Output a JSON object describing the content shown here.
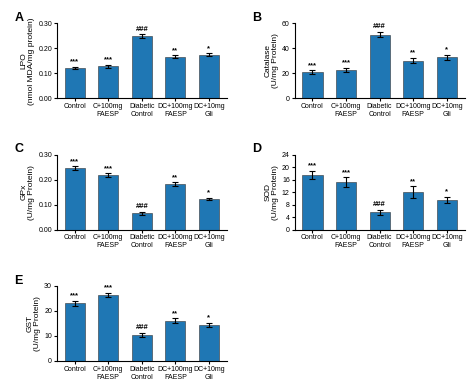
{
  "chart_data": [
    {
      "type": "bar",
      "title": "A",
      "y_label": "LPO\n(nmol MDA/mg protein)",
      "categories": [
        "Control",
        "C+100mg\nFAESP",
        "Diabetic\nControl",
        "DC+100mg\nFAESP",
        "DC+10mg\nGli"
      ],
      "values": [
        0.122,
        0.128,
        0.248,
        0.167,
        0.175
      ],
      "errors": [
        0.005,
        0.005,
        0.008,
        0.006,
        0.006
      ],
      "ylim": [
        0,
        0.3
      ],
      "yticks": [
        {
          "value": 0.0,
          "label": "0.00"
        },
        {
          "value": 0.1,
          "label": "0.10"
        },
        {
          "value": 0.2,
          "label": "0.20"
        },
        {
          "value": 0.3,
          "label": "0.30"
        }
      ],
      "annotations": [
        {
          "text": "***",
          "x": "Control",
          "y": 0.133
        },
        {
          "text": "***",
          "x": "C+100mg\nFAESP",
          "y": 0.139
        },
        {
          "text": "###",
          "x": "Diabetic\nControl",
          "y": 0.26
        },
        {
          "text": "**",
          "x": "DC+100mg\nFAESP",
          "y": 0.178
        },
        {
          "text": "*",
          "x": "DC+10mg\nGli",
          "y": 0.185
        }
      ]
    },
    {
      "type": "bar",
      "title": "B",
      "y_label": "Catalase\n(U/mg Protein)",
      "categories": [
        "Control",
        "C+100mg\nFAESP",
        "Diabetic\nControl",
        "DC+100mg\nFAESP",
        "DC+10mg\nGli"
      ],
      "values": [
        21.0,
        23.0,
        51.0,
        30.0,
        33.0
      ],
      "errors": [
        1.5,
        1.5,
        2.0,
        2.0,
        2.0
      ],
      "ylim": [
        0,
        60
      ],
      "yticks": [
        0,
        20,
        40,
        60
      ],
      "annotations": [
        {
          "text": "***",
          "x": "Control",
          "y": 23.5
        },
        {
          "text": "***",
          "x": "C+100mg\nFAESP",
          "y": 25.5
        },
        {
          "text": "###",
          "x": "Diabetic\nControl",
          "y": 54.5
        },
        {
          "text": "**",
          "x": "DC+100mg\nFAESP",
          "y": 33.5
        },
        {
          "text": "*",
          "x": "DC+10mg\nGli",
          "y": 36.5
        }
      ]
    },
    {
      "type": "bar",
      "title": "C",
      "y_label": "GPx\n(U/mg Protein)",
      "categories": [
        "Control",
        "C+100mg\nFAESP",
        "Diabetic\nControl",
        "DC+100mg\nFAESP",
        "DC+10mg\nGli"
      ],
      "values": [
        0.245,
        0.218,
        0.065,
        0.182,
        0.122
      ],
      "errors": [
        0.008,
        0.007,
        0.005,
        0.007,
        0.005
      ],
      "ylim": [
        0,
        0.3
      ],
      "yticks": [
        {
          "value": 0.0,
          "label": "0.00"
        },
        {
          "value": 0.1,
          "label": "0.10"
        },
        {
          "value": 0.2,
          "label": "0.20"
        },
        {
          "value": 0.3,
          "label": "0.30"
        }
      ],
      "annotations": [
        {
          "text": "***",
          "x": "Control",
          "y": 0.258
        },
        {
          "text": "***",
          "x": "C+100mg\nFAESP",
          "y": 0.23
        },
        {
          "text": "###",
          "x": "Diabetic\nControl",
          "y": 0.078
        },
        {
          "text": "**",
          "x": "DC+100mg\nFAESP",
          "y": 0.194
        },
        {
          "text": "*",
          "x": "DC+10mg\nGli",
          "y": 0.132
        }
      ]
    },
    {
      "type": "bar",
      "title": "D",
      "y_label": "SOD\n(U/mg Protein)",
      "categories": [
        "Control",
        "C+100mg\nFAESP",
        "Diabetic\nControl",
        "DC+100mg\nFAESP",
        "DC+10mg\nGli"
      ],
      "values": [
        17.5,
        15.2,
        5.5,
        12.0,
        9.5
      ],
      "errors": [
        1.2,
        1.5,
        0.8,
        1.8,
        1.0
      ],
      "ylim": [
        0,
        24
      ],
      "yticks": [
        0,
        4,
        8,
        12,
        16,
        20,
        24
      ],
      "annotations": [
        {
          "text": "***",
          "x": "Control",
          "y": 19.2
        },
        {
          "text": "***",
          "x": "C+100mg\nFAESP",
          "y": 17.2
        },
        {
          "text": "###",
          "x": "Diabetic\nControl",
          "y": 7.0
        },
        {
          "text": "**",
          "x": "DC+100mg\nFAESP",
          "y": 14.3
        },
        {
          "text": "*",
          "x": "DC+10mg\nGli",
          "y": 11.0
        }
      ]
    },
    {
      "type": "bar",
      "title": "E",
      "y_label": "GST\n(U/mg Protein)",
      "categories": [
        "Control",
        "C+100mg\nFAESP",
        "Diabetic\nControl",
        "DC+100mg\nFAESP",
        "DC+10mg\nGli"
      ],
      "values": [
        23.0,
        26.5,
        10.5,
        16.0,
        14.5
      ],
      "errors": [
        1.0,
        0.8,
        0.8,
        1.0,
        0.8
      ],
      "ylim": [
        0,
        30
      ],
      "yticks": [
        0,
        10,
        20,
        30
      ],
      "annotations": [
        {
          "text": "***",
          "x": "Control",
          "y": 24.5
        },
        {
          "text": "***",
          "x": "C+100mg\nFAESP",
          "y": 27.8
        },
        {
          "text": "###",
          "x": "Diabetic\nControl",
          "y": 12.0
        },
        {
          "text": "**",
          "x": "DC+100mg\nFAESP",
          "y": 17.5
        },
        {
          "text": "*",
          "x": "DC+10mg\nGli",
          "y": 15.8
        }
      ]
    }
  ]
}
